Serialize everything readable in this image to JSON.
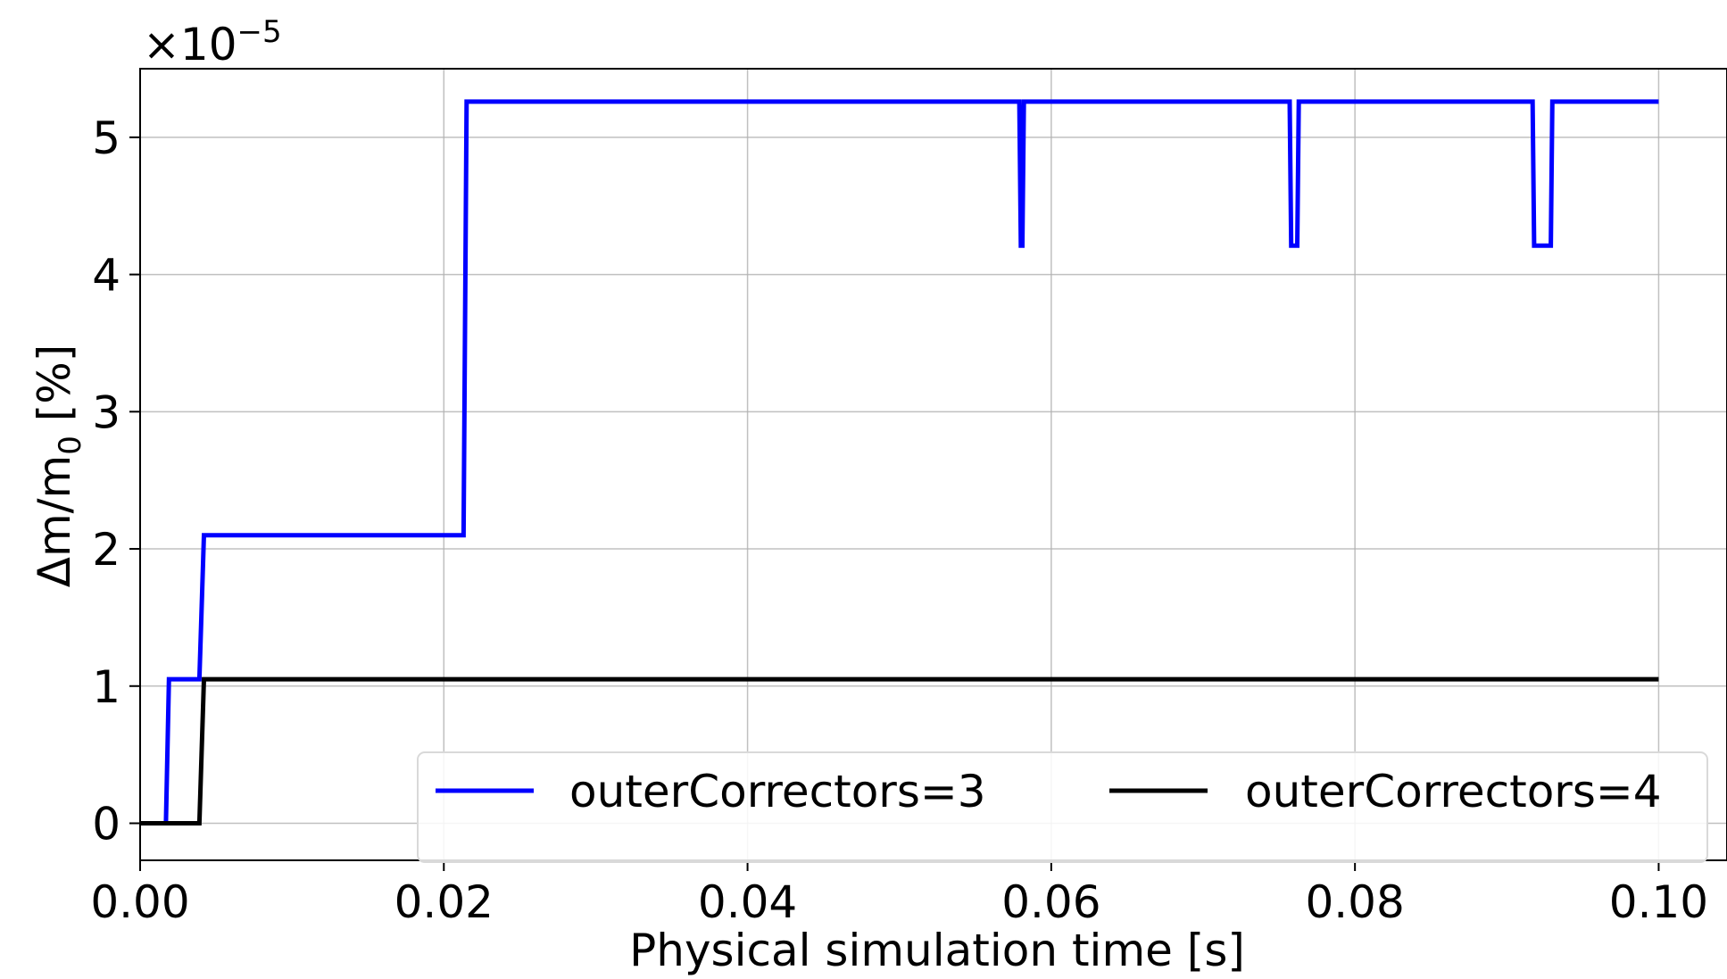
{
  "chart_data": {
    "type": "line",
    "title": "",
    "xlabel": "Physical simulation time [s]",
    "ylabel": "Δm/m",
    "ylabel_subscript": "0",
    "ylabel_unit": " [%]",
    "xlim": [
      0.0,
      0.1045
    ],
    "ylim": [
      -0.27,
      5.5
    ],
    "y_multiplier_base": "×10",
    "y_multiplier_exponent": "−5",
    "grid": true,
    "legend_placement": "lower-right",
    "legend_columns": 2,
    "x_ticks": [
      0.0,
      0.02,
      0.04,
      0.06,
      0.08,
      0.1
    ],
    "x_tick_labels": [
      "0.00",
      "0.02",
      "0.04",
      "0.06",
      "0.08",
      "0.10"
    ],
    "y_ticks": [
      0,
      1,
      2,
      3,
      4,
      5
    ],
    "y_tick_labels": [
      "0",
      "1",
      "2",
      "3",
      "4",
      "5"
    ],
    "series": [
      {
        "name": "outerCorrectors=3",
        "color": "#0000ff",
        "x": [
          0.0,
          0.0017,
          0.0019,
          0.0039,
          0.0042,
          0.0213,
          0.0215,
          0.0579,
          0.058,
          0.0581,
          0.0582,
          0.0757,
          0.0758,
          0.0762,
          0.0763,
          0.0917,
          0.0918,
          0.0929,
          0.093,
          0.1
        ],
        "values": [
          0.0,
          0.0,
          1.05,
          1.05,
          2.1,
          2.1,
          5.26,
          5.26,
          4.21,
          4.21,
          5.26,
          5.26,
          4.21,
          4.21,
          5.26,
          5.26,
          4.21,
          4.21,
          5.26,
          5.26
        ]
      },
      {
        "name": "outerCorrectors=4",
        "color": "#000000",
        "x": [
          0.0,
          0.0039,
          0.0042,
          0.1
        ],
        "values": [
          0.0,
          0.0,
          1.05,
          1.05
        ]
      }
    ]
  }
}
